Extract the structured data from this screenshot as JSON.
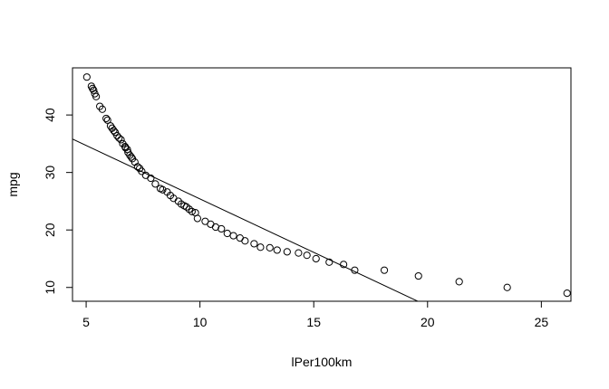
{
  "chart_data": {
    "type": "scatter",
    "title": "",
    "xlabel": "lPer100km",
    "ylabel": "mpg",
    "xlim": [
      4.4,
      26.3
    ],
    "ylim": [
      7.6,
      48.2
    ],
    "xticks": [
      "5",
      "10",
      "15",
      "20",
      "25"
    ],
    "yticks": [
      "10",
      "20",
      "30",
      "40"
    ],
    "grid": false,
    "legend": "none",
    "marker": "open-circle",
    "point_color": "#000000",
    "line_color": "#000000",
    "regression_line": {
      "intercept": 44.0,
      "slope": -1.86
    },
    "series": [
      {
        "x": [
          5.03,
          5.23,
          5.28,
          5.33,
          5.38,
          5.44,
          5.6,
          5.71,
          5.88,
          5.94,
          6.07,
          6.14,
          6.21,
          6.27,
          6.36,
          6.44,
          6.53,
          6.61,
          6.71,
          6.73,
          6.81,
          6.84,
          6.92,
          6.98,
          7.03,
          7.14,
          7.26,
          7.35,
          7.44,
          7.62,
          7.84,
          8.04,
          8.26,
          8.36,
          8.56,
          8.7,
          8.84,
          9.05,
          9.18,
          9.31,
          9.41,
          9.53,
          9.65,
          9.8,
          9.89,
          10.23,
          10.47,
          10.69,
          10.94,
          11.2,
          11.47,
          11.76,
          11.98,
          12.38,
          12.66,
          13.07,
          13.39,
          13.83,
          14.33,
          14.7,
          15.1,
          15.68,
          16.31,
          16.8,
          18.1,
          19.6,
          21.39,
          23.5,
          26.13
        ],
        "y": [
          46.6,
          45.0,
          44.6,
          44.3,
          43.7,
          43.2,
          41.5,
          41.0,
          39.4,
          39.1,
          38.1,
          37.7,
          37.3,
          37.0,
          36.4,
          36.0,
          35.7,
          35.0,
          34.5,
          34.3,
          34.0,
          33.5,
          33.0,
          32.7,
          32.4,
          31.8,
          31.0,
          30.7,
          30.2,
          29.5,
          29.0,
          28.0,
          27.2,
          27.0,
          26.6,
          26.0,
          25.5,
          25.0,
          24.5,
          24.2,
          24.0,
          23.6,
          23.2,
          23.0,
          22.0,
          21.5,
          21.0,
          20.5,
          20.2,
          19.4,
          19.0,
          18.6,
          18.1,
          17.6,
          17.0,
          16.9,
          16.5,
          16.2,
          16.0,
          15.6,
          15.0,
          14.4,
          14.0,
          13.0,
          13.0,
          12.0,
          11.0,
          10.0,
          9.0
        ]
      }
    ]
  }
}
